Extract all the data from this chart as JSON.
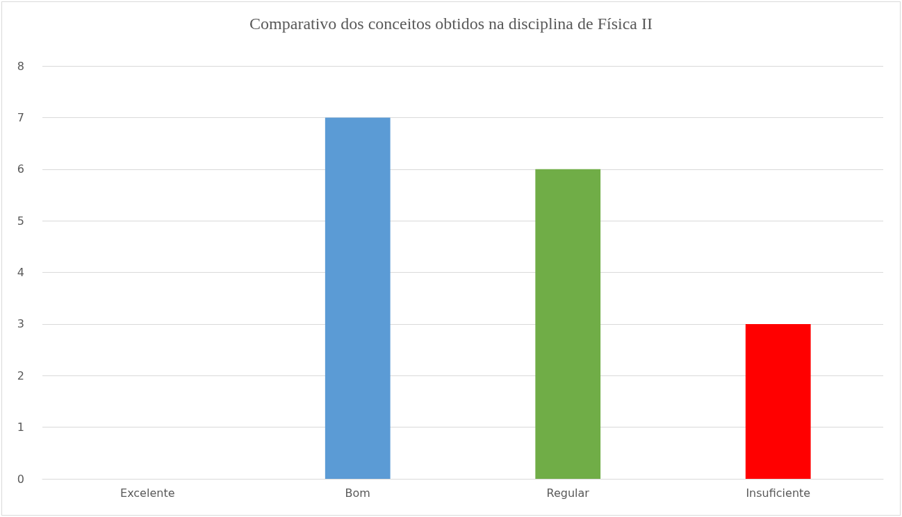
{
  "chart_data": {
    "type": "bar",
    "title": "Comparativo dos conceitos obtidos na disciplina de Física II",
    "categories": [
      "Excelente",
      "Bom",
      "Regular",
      "Insuficiente"
    ],
    "values": [
      0,
      7,
      6,
      3
    ],
    "colors": [
      "#4472c4",
      "#5b9bd5",
      "#70ad47",
      "#ff0000"
    ],
    "ylim": [
      0,
      8
    ],
    "yticks": [
      0,
      1,
      2,
      3,
      4,
      5,
      6,
      7,
      8
    ],
    "grid": "y"
  }
}
